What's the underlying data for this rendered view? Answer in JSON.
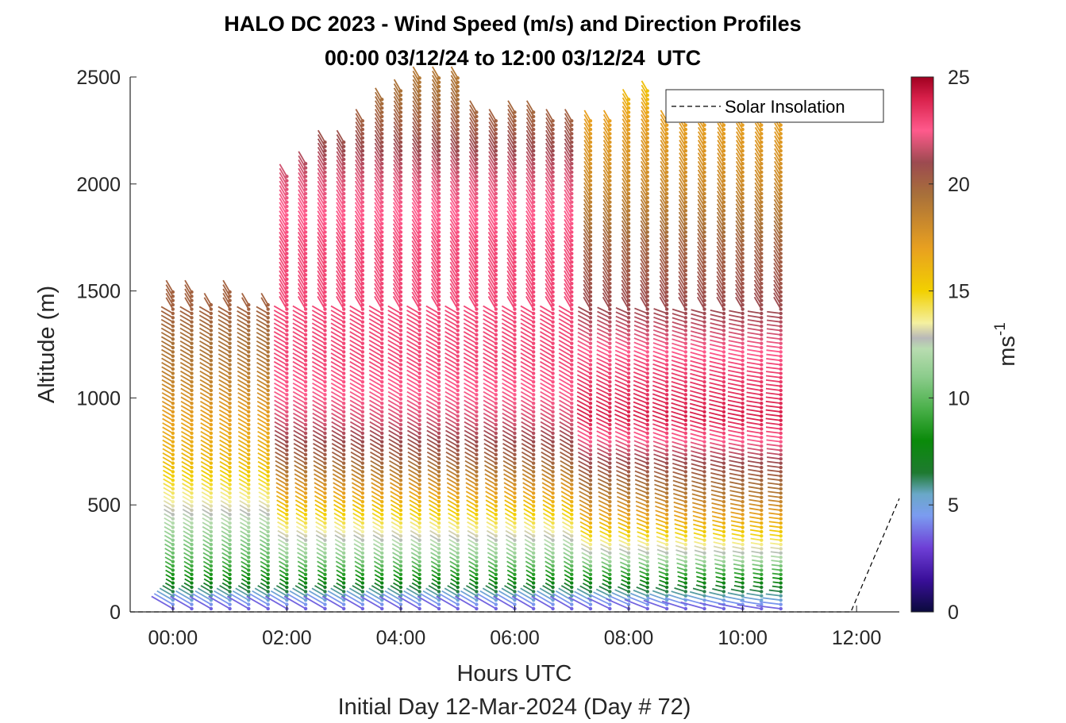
{
  "chart_data": {
    "type": "wind_barb_profile",
    "title": "HALO DC 2023 - Wind Speed (m/s) and Direction Profiles",
    "subtitle": "00:00 03/12/24 to 12:00 03/12/24  UTC",
    "xlabel": "Hours UTC",
    "xlabel2": "Initial Day 12-Mar-2024 (Day # 72)",
    "ylabel": "Altitude (m)",
    "xlim_hours": [
      -0.75,
      12.75
    ],
    "ylim": [
      0,
      2500
    ],
    "x_ticks": [
      0,
      2,
      4,
      6,
      8,
      10,
      12
    ],
    "x_tick_labels": [
      "00:00",
      "02:00",
      "04:00",
      "06:00",
      "08:00",
      "10:00",
      "12:00"
    ],
    "y_ticks": [
      0,
      500,
      1000,
      1500,
      2000,
      2500
    ],
    "y_tick_labels": [
      "0",
      "500",
      "1000",
      "1500",
      "2000",
      "2500"
    ],
    "colorbar": {
      "label": "ms",
      "label_superscript": "-1",
      "range": [
        0,
        25
      ],
      "ticks": [
        0,
        5,
        10,
        15,
        20,
        25
      ],
      "tick_labels": [
        "0",
        "5",
        "10",
        "15",
        "20",
        "25"
      ],
      "stops": [
        {
          "v": 0,
          "c": "#0a0a3c"
        },
        {
          "v": 1.5,
          "c": "#3a0f9a"
        },
        {
          "v": 3,
          "c": "#6e3fd6"
        },
        {
          "v": 4.5,
          "c": "#7b9cf0"
        },
        {
          "v": 5.5,
          "c": "#6aa8c8"
        },
        {
          "v": 6.5,
          "c": "#1e7a30"
        },
        {
          "v": 8,
          "c": "#0a8a0a"
        },
        {
          "v": 9.5,
          "c": "#4ab04a"
        },
        {
          "v": 11,
          "c": "#8ccc8c"
        },
        {
          "v": 12.3,
          "c": "#b8dcb0"
        },
        {
          "v": 12.8,
          "c": "#b8b8b8"
        },
        {
          "v": 13.5,
          "c": "#f4f0a0"
        },
        {
          "v": 15,
          "c": "#f2d000"
        },
        {
          "v": 17,
          "c": "#e8a020"
        },
        {
          "v": 19.5,
          "c": "#a8703a"
        },
        {
          "v": 21,
          "c": "#9c4a50"
        },
        {
          "v": 22.5,
          "c": "#ff5a8c"
        },
        {
          "v": 24,
          "c": "#d8204a"
        },
        {
          "v": 25,
          "c": "#a00020"
        }
      ]
    },
    "legend": {
      "entries": [
        "Solar Insolation"
      ],
      "location": "top-right",
      "style": "dashed"
    },
    "profile_times_hours": [
      0,
      0.33,
      0.67,
      1,
      1.33,
      1.67,
      2,
      2.33,
      2.67,
      3,
      3.33,
      3.67,
      4,
      4.33,
      4.67,
      5,
      5.33,
      5.67,
      6,
      6.33,
      6.67,
      7,
      7.33,
      7.67,
      8,
      8.33,
      8.67,
      9,
      9.33,
      9.67,
      10,
      10.33,
      10.67
    ],
    "profile_top_altitudes_m": [
      1500,
      1500,
      1450,
      1500,
      1450,
      1450,
      2050,
      2100,
      2200,
      2200,
      2300,
      2400,
      2450,
      2500,
      2500,
      2500,
      2350,
      2300,
      2350,
      2350,
      2300,
      2300,
      2300,
      2300,
      2400,
      2450,
      2300,
      2300,
      2300,
      2300,
      2300,
      2300,
      2300
    ],
    "speed_profile_m_per_s": {
      "altitude_m": [
        0,
        50,
        150,
        250,
        400,
        550,
        700,
        900,
        1150,
        1400,
        1700,
        2000,
        2300,
        2500
      ],
      "early_0000_0130": [
        3,
        5,
        8,
        10,
        12,
        14,
        16,
        17,
        19,
        20,
        20,
        20,
        20,
        20
      ],
      "mid_0200_0700": [
        3,
        5,
        8,
        11,
        14,
        17,
        20,
        22,
        23,
        23,
        23,
        22,
        20,
        19
      ],
      "late_0730_1040": [
        3,
        5,
        8,
        12,
        16,
        19,
        21,
        24,
        23,
        21,
        20,
        18,
        17,
        15
      ]
    },
    "solar_insolation_line": {
      "x_hours": [
        -0.75,
        11.9,
        12.75
      ],
      "y_m": [
        0,
        0,
        530
      ]
    }
  }
}
